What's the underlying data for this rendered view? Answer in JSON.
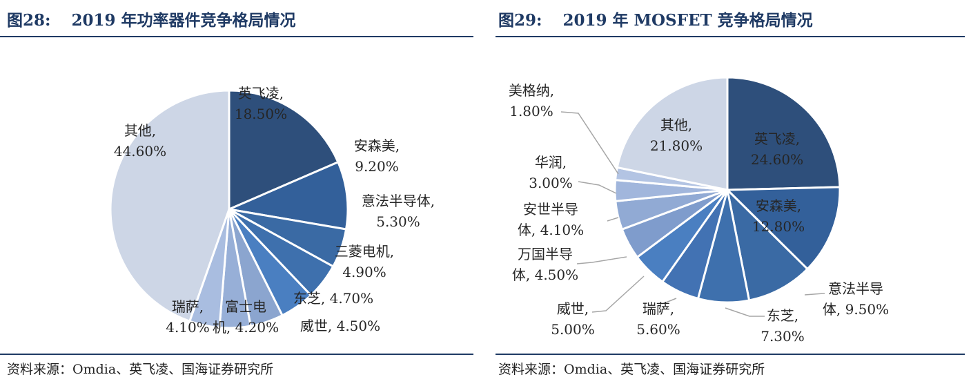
{
  "charts": [
    {
      "figure_number": "图28:",
      "title": "2019 年功率器件竞争格局情况",
      "source": "资料来源：Omdia、英飞凌、国海证券研究所"
    },
    {
      "figure_number": "图29:",
      "title": "2019 年 MOSFET 竞争格局情况",
      "source": "资料来源：Omdia、英飞凌、国海证券研究所"
    }
  ],
  "chart_data": [
    {
      "type": "pie",
      "title": "2019 年功率器件竞争格局情况",
      "unit": "%",
      "categories": [
        "英飞凌",
        "安森美",
        "意法半导体",
        "三菱电机",
        "东芝",
        "威世",
        "富士电机",
        "瑞萨",
        "其他"
      ],
      "values": [
        18.5,
        9.2,
        5.3,
        4.9,
        4.7,
        4.5,
        4.2,
        4.1,
        44.6
      ],
      "colors": [
        "#2e4f7b",
        "#33609a",
        "#3a6aa4",
        "#3e70ad",
        "#4a7fc1",
        "#8ba5cf",
        "#97afd7",
        "#a9bde0",
        "#cdd6e6"
      ],
      "label_lines": [
        [
          "英飞凌,",
          "18.50%"
        ],
        [
          "安森美,",
          "9.20%"
        ],
        [
          "意法半导体,",
          "5.30%"
        ],
        [
          "三菱电机,",
          "4.90%"
        ],
        [
          "东芝, 4.70%"
        ],
        [
          "威世, 4.50%"
        ],
        [
          "富士电",
          "机, 4.20%"
        ],
        [
          "瑞萨,",
          "4.10%"
        ],
        [
          "其他,",
          "44.60%"
        ]
      ]
    },
    {
      "type": "pie",
      "title": "2019 年 MOSFET 竞争格局情况",
      "unit": "%",
      "categories": [
        "英飞凌",
        "安森美",
        "意法半导体",
        "东芝",
        "瑞萨",
        "威世",
        "万国半导体",
        "安世半导体",
        "华润",
        "美格纳",
        "其他"
      ],
      "values": [
        24.6,
        12.8,
        9.5,
        7.3,
        5.6,
        5.0,
        4.5,
        4.1,
        3.0,
        1.8,
        21.8
      ],
      "colors": [
        "#2e4f7b",
        "#33609a",
        "#3a6aa4",
        "#3e70ad",
        "#4272b3",
        "#4a7fc1",
        "#7f9ccc",
        "#91aad4",
        "#a1b6dc",
        "#b3c4e3",
        "#cdd6e6"
      ],
      "label_lines": [
        [
          "英飞凌,",
          "24.60%"
        ],
        [
          "安森美,",
          "12.80%"
        ],
        [
          "意法半导",
          "体, 9.50%"
        ],
        [
          "东芝,",
          "7.30%"
        ],
        [
          "瑞萨,",
          "5.60%"
        ],
        [
          "威世,",
          "5.00%"
        ],
        [
          "万国半导",
          "体, 4.50%"
        ],
        [
          "安世半导",
          "体, 4.10%"
        ],
        [
          "华润,",
          "3.00%"
        ],
        [
          "美格纳,",
          "1.80%"
        ],
        [
          "其他,",
          "21.80%"
        ]
      ]
    }
  ]
}
